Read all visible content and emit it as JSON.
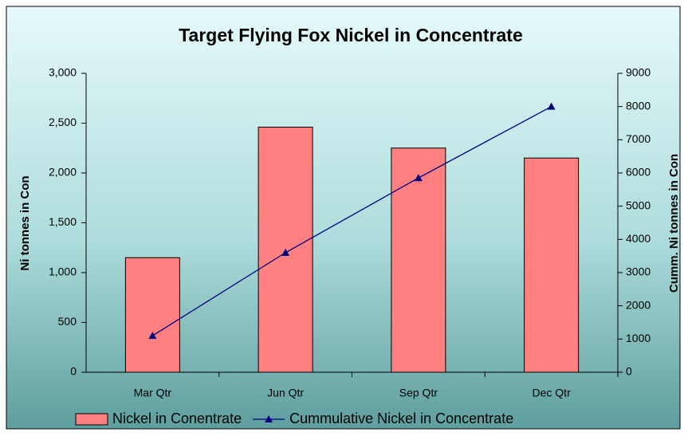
{
  "chart_data": {
    "type": "bar",
    "title": "Target Flying Fox Nickel in Concentrate",
    "categories": [
      "Mar Qtr",
      "Jun Qtr",
      "Sep Qtr",
      "Dec Qtr"
    ],
    "series": [
      {
        "name": "Nickel in Conentrate",
        "type": "bar",
        "color": "#ff8080",
        "values": [
          1150,
          2460,
          2250,
          2150
        ]
      },
      {
        "name": "Cummulative Nickel in Concentrate",
        "type": "line",
        "axis": "y2",
        "color": "#000080",
        "values": [
          1100,
          3600,
          5850,
          8000
        ]
      }
    ],
    "ylabel": "Ni tonnes in Con",
    "y2label": "Cumm. Ni tonnes in Con",
    "ylim": [
      0,
      3000
    ],
    "yticks": [
      0,
      {
        "value": 500,
        "label": "500"
      },
      {
        "value": 1000,
        "label": "1,000"
      },
      {
        "value": 1500,
        "label": "1,500"
      },
      {
        "value": 2000,
        "label": "2,000"
      },
      {
        "value": 2500,
        "label": "2,500"
      },
      {
        "value": 3000,
        "label": "3,000"
      }
    ],
    "y2lim": [
      0,
      9000
    ],
    "y2ticks": [
      0,
      1000,
      2000,
      3000,
      4000,
      5000,
      6000,
      7000,
      8000,
      9000
    ],
    "grid": false,
    "legend": "bottom"
  }
}
